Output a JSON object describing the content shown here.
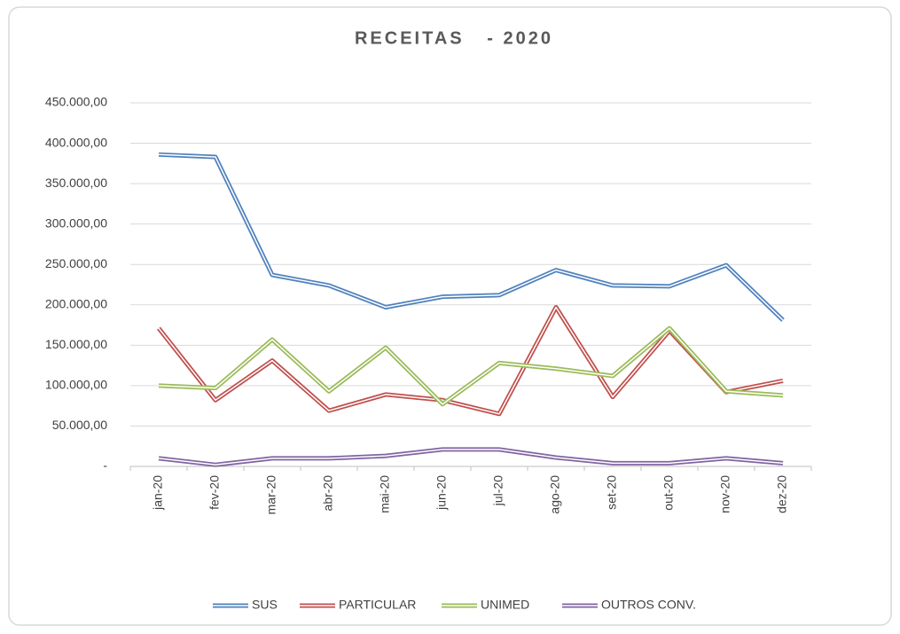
{
  "chart_data": {
    "type": "line",
    "title": "RECEITAS   - 2020",
    "categories": [
      "jan-20",
      "fev-20",
      "mar-20",
      "abr-20",
      "mai-20",
      "jun-20",
      "jul-20",
      "ago-20",
      "set-20",
      "out-20",
      "nov-20",
      "dez-20"
    ],
    "series": [
      {
        "name": "SUS",
        "color": "#4f81bd",
        "values": [
          386000,
          383000,
          237000,
          224000,
          197000,
          210000,
          212000,
          243000,
          224000,
          223000,
          249000,
          181000
        ]
      },
      {
        "name": "PARTICULAR",
        "color": "#c0504d",
        "values": [
          171000,
          82000,
          131000,
          69000,
          89000,
          82000,
          65000,
          197000,
          86000,
          168000,
          92000,
          106000
        ]
      },
      {
        "name": "UNIMED",
        "color": "#9bbb59",
        "values": [
          100000,
          97000,
          157000,
          93000,
          147000,
          77000,
          128000,
          121000,
          112000,
          171000,
          93000,
          88000
        ]
      },
      {
        "name": "OUTROS CONV.",
        "color": "#8064a2",
        "values": [
          10000,
          2000,
          10000,
          10000,
          13000,
          21000,
          21000,
          11000,
          4000,
          4000,
          10000,
          4000
        ]
      }
    ],
    "ylim": [
      0,
      450000
    ],
    "yticks": [
      {
        "value": 0,
        "label": "-"
      },
      {
        "value": 50000,
        "label": "50.000,00"
      },
      {
        "value": 100000,
        "label": "100.000,00"
      },
      {
        "value": 150000,
        "label": "150.000,00"
      },
      {
        "value": 200000,
        "label": "200.000,00"
      },
      {
        "value": 250000,
        "label": "250.000,00"
      },
      {
        "value": 300000,
        "label": "300.000,00"
      },
      {
        "value": 350000,
        "label": "350.000,00"
      },
      {
        "value": 400000,
        "label": "400.000,00"
      },
      {
        "value": 450000,
        "label": "450.000,00"
      }
    ],
    "grid": true,
    "legend": "bottom"
  }
}
